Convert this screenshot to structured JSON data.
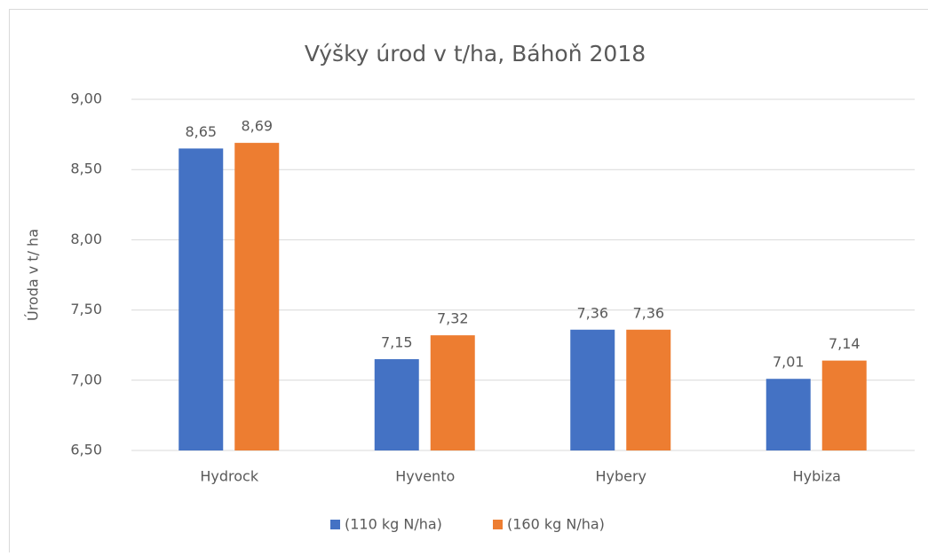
{
  "chart_data": {
    "type": "bar",
    "title": "Výšky úrod v t/ha, Báhoň 2018",
    "y_label": "Úroda v t/ ha",
    "categories": [
      "Hydrock",
      "Hyvento",
      "Hybery",
      "Hybiza"
    ],
    "series": [
      {
        "name": "(110 kg N/ha)",
        "color": "#4472c4",
        "values": [
          8.65,
          7.15,
          7.36,
          7.01
        ],
        "value_labels": [
          "8,65",
          "7,15",
          "7,36",
          "7,01"
        ]
      },
      {
        "name": "(160 kg N/ha)",
        "color": "#ed7d31",
        "values": [
          8.69,
          7.32,
          7.36,
          7.14
        ],
        "value_labels": [
          "8,69",
          "7,32",
          "7,36",
          "7,14"
        ]
      }
    ],
    "ylim": [
      6.5,
      9.0
    ],
    "yticks": [
      {
        "value": 6.5,
        "label": "6,50"
      },
      {
        "value": 7.0,
        "label": "7,00"
      },
      {
        "value": 7.5,
        "label": "7,50"
      },
      {
        "value": 8.0,
        "label": "8,00"
      },
      {
        "value": 8.5,
        "label": "8,50"
      },
      {
        "value": 9.0,
        "label": "9,00"
      }
    ],
    "grid": true,
    "legend": "bottom"
  }
}
